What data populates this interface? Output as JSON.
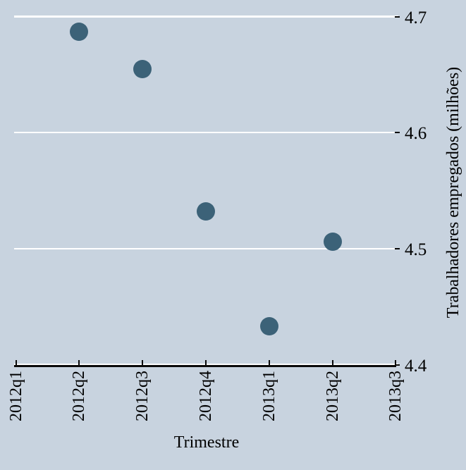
{
  "chart_data": {
    "type": "scatter",
    "title": "",
    "xlabel": "Trimestre",
    "ylabel": "Trabalhadores empregados (milhões)",
    "x_categories": [
      "2012q1",
      "2012q2",
      "2012q3",
      "2012q4",
      "2013q1",
      "2013q2",
      "2013q3"
    ],
    "points": [
      {
        "x": "2012q2",
        "y": 4.687
      },
      {
        "x": "2012q3",
        "y": 4.655
      },
      {
        "x": "2012q4",
        "y": 4.532
      },
      {
        "x": "2013q1",
        "y": 4.433
      },
      {
        "x": "2013q2",
        "y": 4.506
      }
    ],
    "y_ticks": [
      {
        "value": 4.7,
        "label": "4.7"
      },
      {
        "value": 4.6,
        "label": "4.6"
      },
      {
        "value": 4.5,
        "label": "4.5"
      },
      {
        "value": 4.4,
        "label": "4.4"
      }
    ],
    "ylim": [
      4.4,
      4.7
    ],
    "grid": true,
    "legend": "none",
    "marker_diameter_px": 26,
    "colors": {
      "background": "#c8d3df",
      "marker": "#3c6278",
      "gridline": "#ffffff",
      "axis_line": "#0a0a0a",
      "text": "#000000"
    }
  }
}
